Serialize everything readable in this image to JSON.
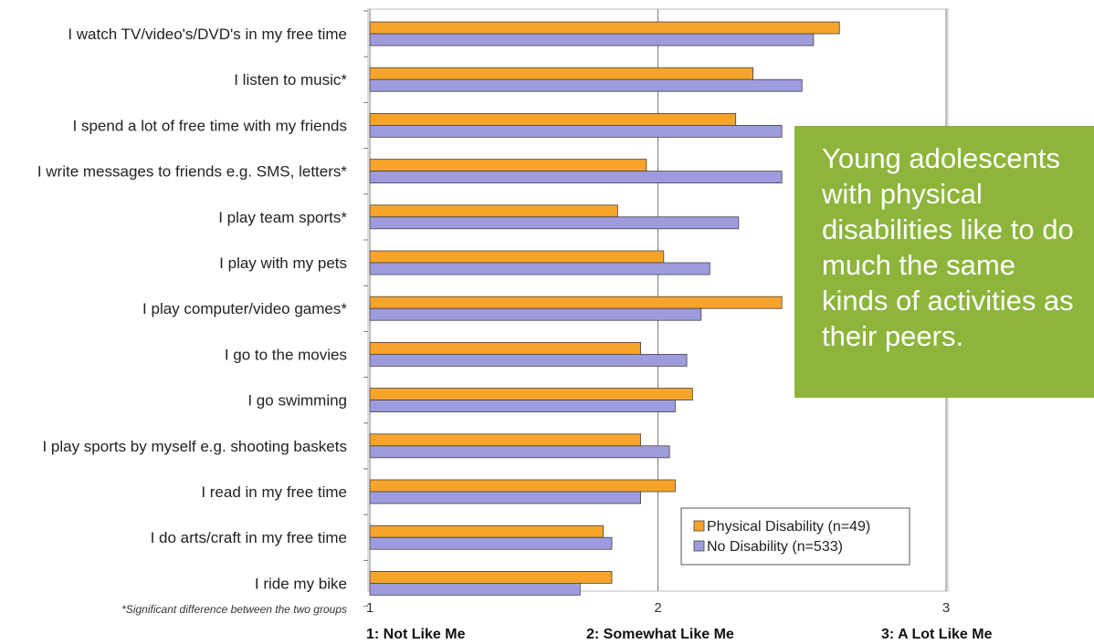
{
  "chart_data": {
    "type": "bar",
    "orientation": "horizontal",
    "categories": [
      "I watch TV/video's/DVD's in my free time",
      "I listen to music*",
      "I spend a lot of free time with my friends",
      "I write messages to friends e.g. SMS, letters*",
      "I play team sports*",
      "I play with my pets",
      "I play computer/video games*",
      "I go to the movies",
      "I go swimming",
      "I play sports by myself e.g. shooting baskets",
      "I read in my free time",
      "I do arts/craft in my free time",
      "I ride my bike"
    ],
    "series": [
      {
        "name": "Physical Disability (n=49)",
        "color": "#f7a42a",
        "values": [
          2.63,
          2.33,
          2.27,
          1.96,
          1.86,
          2.02,
          2.43,
          1.94,
          2.12,
          1.94,
          2.06,
          1.81,
          1.84
        ]
      },
      {
        "name": "No Disability (n=533)",
        "color": "#9e9cdc",
        "values": [
          2.54,
          2.5,
          2.43,
          2.43,
          2.28,
          2.18,
          2.15,
          2.1,
          2.06,
          2.04,
          1.94,
          1.84,
          1.73
        ]
      }
    ],
    "xlim": [
      1,
      3
    ],
    "xticks": [
      "1",
      "2",
      "3"
    ],
    "scale_labels": [
      "1: Not Like Me",
      "2: Somewhat Like Me",
      "3: A Lot Like Me"
    ],
    "footnote": "*Significant difference between the two groups",
    "grid": true,
    "legend": "bottom-right"
  },
  "callout": {
    "text": "Young adolescents with physical disabilities like to do much the same kinds of activities as their peers.",
    "color": "#8db53c"
  }
}
